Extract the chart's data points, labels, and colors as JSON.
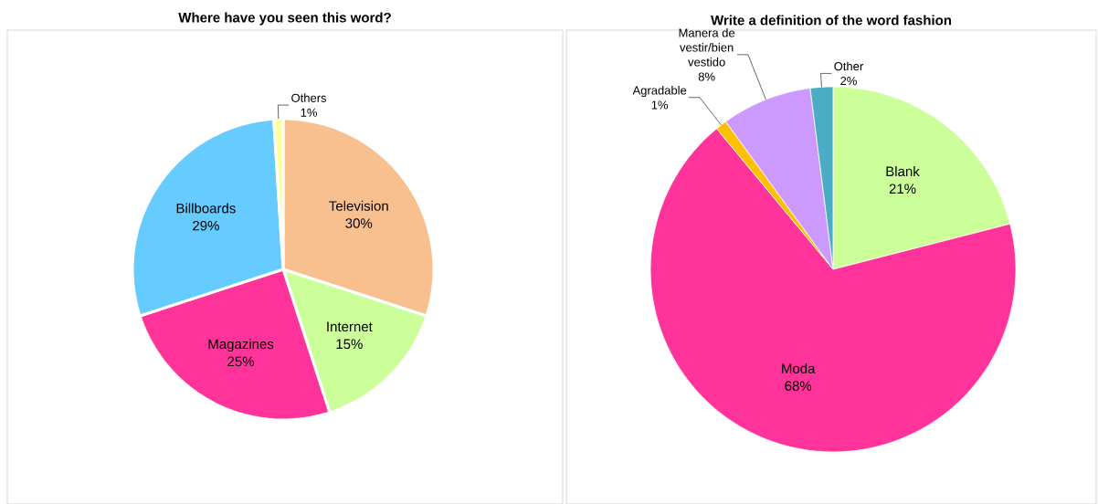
{
  "chart_data": [
    {
      "type": "pie",
      "title": "Where have you seen this word?",
      "categories": [
        "Television",
        "Internet",
        "Magazines",
        "Billboards",
        "Others"
      ],
      "values": [
        30,
        15,
        25,
        29,
        1
      ],
      "value_labels": [
        "30%",
        "15%",
        "25%",
        "29%",
        "1%"
      ],
      "colors": [
        "#f9c08f",
        "#ccff99",
        "#ff3399",
        "#66ccff",
        "#ffff99"
      ]
    },
    {
      "type": "pie",
      "title": "Write a definition of the word fashion",
      "categories": [
        "Blank",
        "Moda",
        "Agradable",
        "Manera de vestir/bien vestido",
        "Other"
      ],
      "values": [
        21,
        68,
        1,
        8,
        2
      ],
      "value_labels": [
        "21%",
        "68%",
        "1%",
        "8%",
        "2%"
      ],
      "colors": [
        "#ccff99",
        "#ff3399",
        "#ffc000",
        "#cc99ff",
        "#4bacc6"
      ]
    }
  ]
}
